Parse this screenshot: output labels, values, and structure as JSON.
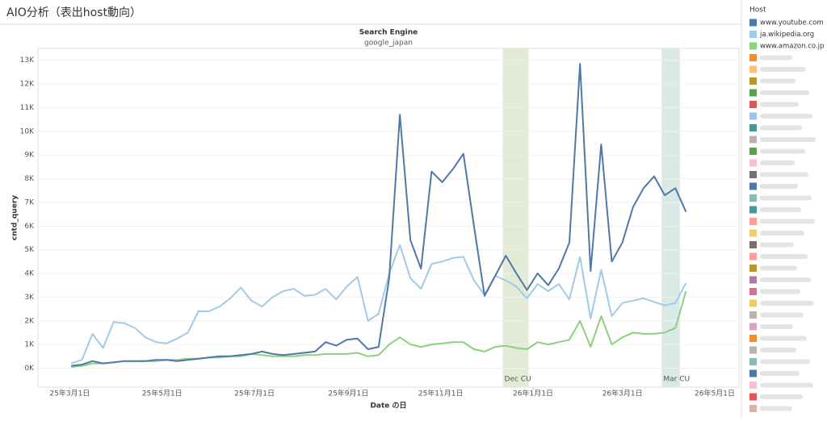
{
  "chart_data": {
    "type": "line",
    "title": "AIO分析（表出host動向）",
    "panel_title": "Search Engine",
    "panel_value": "google_japan",
    "y_label": "cntd_query",
    "x_label": "Date の日",
    "legend_title": "Host",
    "grid": true,
    "x": [
      "2025-03-02",
      "2025-03-09",
      "2025-03-16",
      "2025-03-23",
      "2025-03-30",
      "2025-04-06",
      "2025-04-13",
      "2025-04-20",
      "2025-04-27",
      "2025-05-04",
      "2025-05-11",
      "2025-05-18",
      "2025-05-25",
      "2025-06-01",
      "2025-06-08",
      "2025-06-15",
      "2025-06-22",
      "2025-06-29",
      "2025-07-06",
      "2025-07-13",
      "2025-07-20",
      "2025-07-27",
      "2025-08-03",
      "2025-08-10",
      "2025-08-17",
      "2025-08-24",
      "2025-08-31",
      "2025-09-07",
      "2025-09-14",
      "2025-09-21",
      "2025-09-28",
      "2025-10-05",
      "2025-10-12",
      "2025-10-19",
      "2025-10-26",
      "2025-11-02",
      "2025-11-09",
      "2025-11-16",
      "2025-11-23",
      "2025-11-30",
      "2025-12-07",
      "2025-12-14",
      "2025-12-21",
      "2025-12-28",
      "2026-01-04",
      "2026-01-11",
      "2026-01-18",
      "2026-01-25",
      "2026-02-01",
      "2026-02-08",
      "2026-02-15",
      "2026-02-22",
      "2026-03-01",
      "2026-03-08",
      "2026-03-15",
      "2026-03-22",
      "2026-03-29",
      "2026-04-05",
      "2026-04-12"
    ],
    "series": [
      {
        "name": "www.youtube.com",
        "color": "#4e79a7",
        "width": 2,
        "values": [
          100,
          150,
          300,
          200,
          250,
          300,
          300,
          300,
          350,
          350,
          300,
          350,
          400,
          450,
          500,
          500,
          550,
          600,
          700,
          600,
          550,
          600,
          650,
          700,
          1100,
          950,
          1200,
          1250,
          800,
          900,
          3800,
          10700,
          5400,
          4200,
          8300,
          7850,
          8400,
          9050,
          6000,
          3050,
          3900,
          4750,
          4000,
          3300,
          4000,
          3500,
          4200,
          5300,
          12850,
          4100,
          9450,
          4500,
          5300,
          6800,
          7600,
          8100,
          7300,
          7600,
          6600
        ]
      },
      {
        "name": "ja.wikipedia.org",
        "color": "#a0cbe8",
        "width": 2,
        "values": [
          200,
          350,
          1450,
          850,
          1950,
          1900,
          1700,
          1300,
          1100,
          1050,
          1250,
          1500,
          2400,
          2400,
          2600,
          2950,
          3400,
          2850,
          2600,
          3000,
          3250,
          3350,
          3050,
          3100,
          3350,
          2900,
          3450,
          3850,
          2000,
          2300,
          4000,
          5200,
          3800,
          3350,
          4400,
          4500,
          4650,
          4700,
          3700,
          3100,
          3900,
          3700,
          3450,
          2950,
          3550,
          3250,
          3550,
          2900,
          4700,
          2100,
          4150,
          2200,
          2750,
          2850,
          2950,
          2800,
          2650,
          2750,
          3600
        ]
      },
      {
        "name": "www.amazon.co.jp",
        "color": "#8cd17d",
        "width": 2,
        "values": [
          50,
          100,
          200,
          200,
          250,
          300,
          300,
          300,
          300,
          350,
          350,
          400,
          400,
          450,
          450,
          500,
          500,
          600,
          550,
          500,
          500,
          500,
          550,
          550,
          600,
          600,
          600,
          650,
          500,
          550,
          1000,
          1300,
          1000,
          900,
          1000,
          1050,
          1100,
          1100,
          800,
          700,
          900,
          950,
          850,
          800,
          1100,
          1000,
          1100,
          1200,
          2000,
          900,
          2200,
          1000,
          1300,
          1500,
          1450,
          1450,
          1500,
          1700,
          3250
        ]
      }
    ],
    "xlim": [
      "2025-02-08",
      "2026-05-17"
    ],
    "xticks": [
      {
        "value": "2025-03-01",
        "label": "25年3月1日"
      },
      {
        "value": "2025-05-01",
        "label": "25年5月1日"
      },
      {
        "value": "2025-07-01",
        "label": "25年7月1日"
      },
      {
        "value": "2025-09-01",
        "label": "25年9月1日"
      },
      {
        "value": "2025-11-01",
        "label": "25年11月1日"
      },
      {
        "value": "2026-01-01",
        "label": "26年1月1日"
      },
      {
        "value": "2026-03-01",
        "label": "26年3月1日"
      },
      {
        "value": "2026-05-01",
        "label": "26年5月1日"
      }
    ],
    "ylim": [
      -800,
      13500
    ],
    "yticks": [
      {
        "value": 0,
        "label": "0K"
      },
      {
        "value": 1000,
        "label": "1K"
      },
      {
        "value": 2000,
        "label": "2K"
      },
      {
        "value": 3000,
        "label": "3K"
      },
      {
        "value": 4000,
        "label": "4K"
      },
      {
        "value": 5000,
        "label": "5K"
      },
      {
        "value": 6000,
        "label": "6K"
      },
      {
        "value": 7000,
        "label": "7K"
      },
      {
        "value": 8000,
        "label": "8K"
      },
      {
        "value": 9000,
        "label": "9K"
      },
      {
        "value": 10000,
        "label": "10K"
      },
      {
        "value": 11000,
        "label": "11K"
      },
      {
        "value": 12000,
        "label": "12K"
      },
      {
        "value": 13000,
        "label": "13K"
      }
    ],
    "reference_bands": [
      {
        "label": "Dec CU",
        "start": "2025-12-12",
        "end": "2025-12-29",
        "color": "#e3ead6"
      },
      {
        "label": "Mar CU",
        "start": "2026-03-27",
        "end": "2026-04-08",
        "color": "#dbe9e6"
      }
    ]
  }
}
